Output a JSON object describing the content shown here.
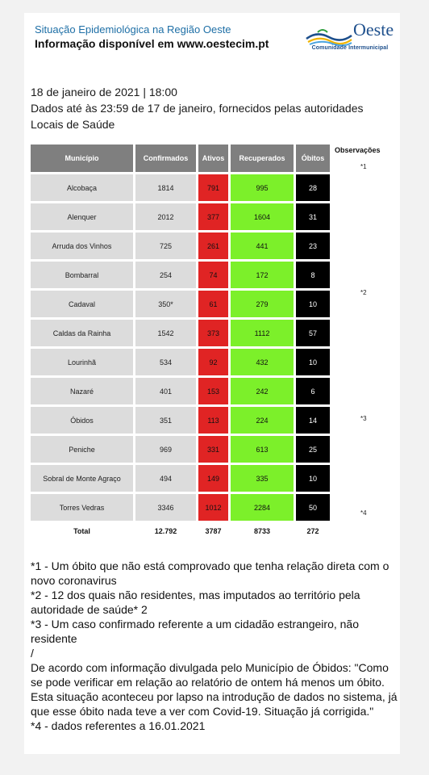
{
  "header": {
    "line1": "Situação Epidemiológica na Região Oeste",
    "line2": "Informação disponível em www.oestecim.pt",
    "logo_word": "Oeste",
    "logo_sub": "Comunidade Intermunicipal"
  },
  "intro": {
    "date_line": "18 de janeiro de 2021 | 18:00",
    "source_line": "Dados até às 23:59 de 17 de janeiro, fornecidos pelas autoridades Locais de Saúde"
  },
  "table": {
    "observations_header": "Observações",
    "columns": [
      "Município",
      "Confirmados",
      "Ativos",
      "Recuperados",
      "Óbitos"
    ],
    "rows": [
      {
        "municipio": "Alcobaça",
        "confirmados": "1814",
        "ativos": "791",
        "recuperados": "995",
        "obitos": "28",
        "obs": "*1"
      },
      {
        "municipio": "Alenquer",
        "confirmados": "2012",
        "ativos": "377",
        "recuperados": "1604",
        "obitos": "31",
        "obs": ""
      },
      {
        "municipio": "Arruda dos Vinhos",
        "confirmados": "725",
        "ativos": "261",
        "recuperados": "441",
        "obitos": "23",
        "obs": ""
      },
      {
        "municipio": "Bombarral",
        "confirmados": "254",
        "ativos": "74",
        "recuperados": "172",
        "obitos": "8",
        "obs": ""
      },
      {
        "municipio": "Cadaval",
        "confirmados": "350*",
        "ativos": "61",
        "recuperados": "279",
        "obitos": "10",
        "obs": "*2"
      },
      {
        "municipio": "Caldas da Rainha",
        "confirmados": "1542",
        "ativos": "373",
        "recuperados": "1112",
        "obitos": "57",
        "obs": ""
      },
      {
        "municipio": "Lourinhã",
        "confirmados": "534",
        "ativos": "92",
        "recuperados": "432",
        "obitos": "10",
        "obs": ""
      },
      {
        "municipio": "Nazaré",
        "confirmados": "401",
        "ativos": "153",
        "recuperados": "242",
        "obitos": "6",
        "obs": ""
      },
      {
        "municipio": "Óbidos",
        "confirmados": "351",
        "ativos": "113",
        "recuperados": "224",
        "obitos": "14",
        "obs": "*3"
      },
      {
        "municipio": "Peniche",
        "confirmados": "969",
        "ativos": "331",
        "recuperados": "613",
        "obitos": "25",
        "obs": ""
      },
      {
        "municipio": "Sobral de Monte Agraço",
        "confirmados": "494",
        "ativos": "149",
        "recuperados": "335",
        "obitos": "10",
        "obs": ""
      },
      {
        "municipio": "Torres Vedras",
        "confirmados": "3346",
        "ativos": "1012",
        "recuperados": "2284",
        "obitos": "50",
        "obs": "*4"
      }
    ],
    "total": {
      "label": "Total",
      "confirmados": "12.792",
      "ativos": "3787",
      "recuperados": "8733",
      "obitos": "272"
    }
  },
  "notes": [
    "*1 - Um óbito que não está comprovado que tenha relação direta com o novo coronavirus",
    "*2 - 12 dos quais não residentes, mas imputados ao território pela autoridade de saúde* 2",
    "*3 - Um caso confirmado referente a um cidadão estrangeiro, não residente",
    "/",
    "De acordo com informação divulgada pelo Município de Óbidos: \"Como se pode verificar em relação ao relatório de ontem há menos um óbito. Esta situação aconteceu por lapso na introdução de dados no sistema, já que esse óbito nada teve a ver com Covid-19. Situação já corrigida.\"",
    "*4 - dados referentes a 16.01.2021"
  ],
  "colors": {
    "ativos": "#e02424",
    "recuperados": "#7cf02a",
    "obitos": "#000000",
    "header_gray": "#7f7f7f",
    "accent_blue": "#1e6fa6"
  }
}
